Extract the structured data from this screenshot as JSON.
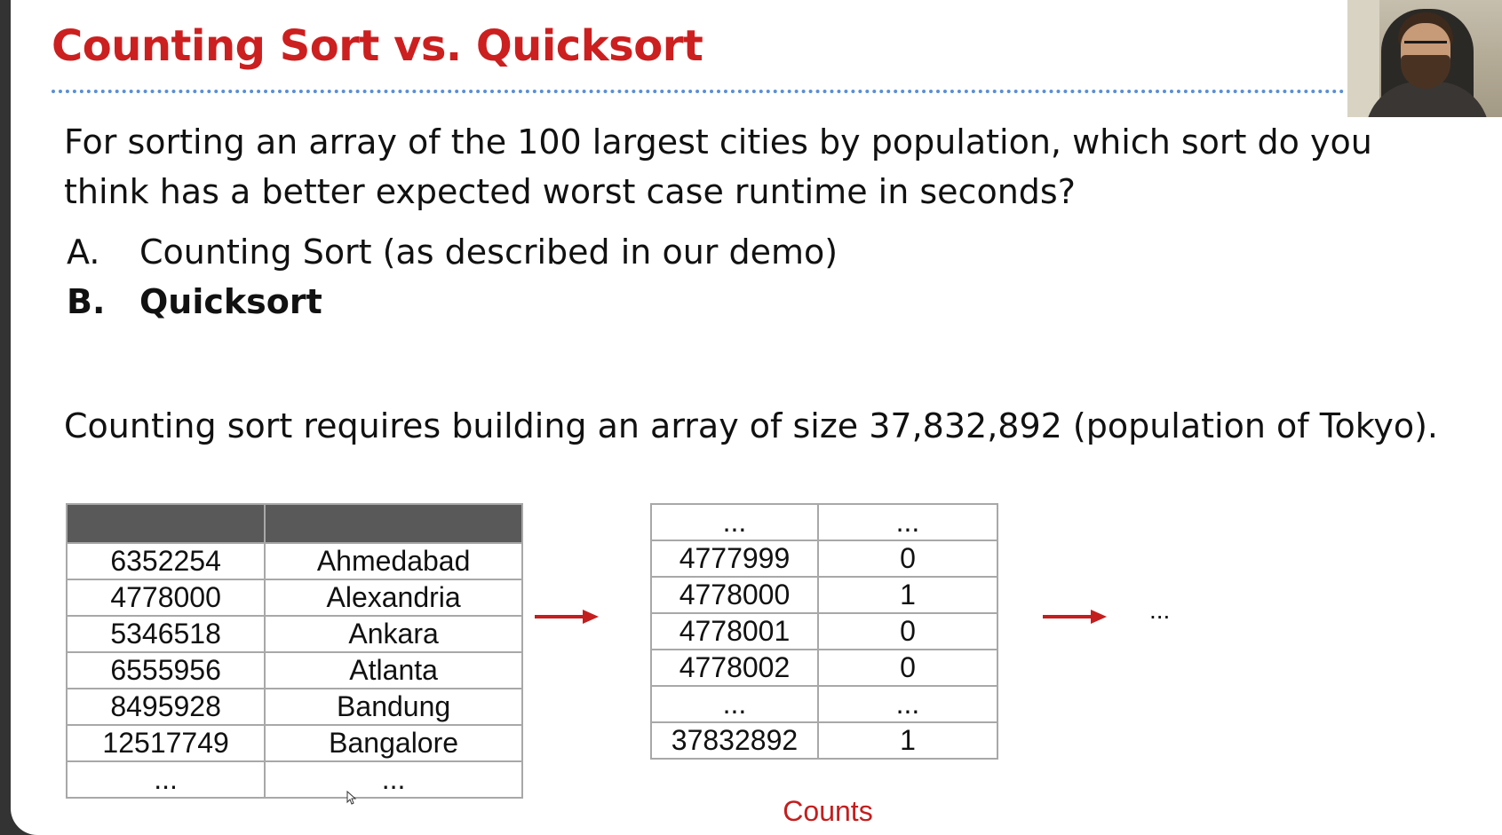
{
  "slide": {
    "title": "Counting Sort vs. Quicksort",
    "question": "For sorting an array of the 100 largest cities by population, which sort do you think has a better expected worst case runtime in seconds?",
    "options": [
      {
        "letter": "A.",
        "text": "Counting Sort (as described in our demo)",
        "selected": false
      },
      {
        "letter": "B.",
        "text": "Quicksort",
        "selected": true
      }
    ],
    "note": "Counting sort requires building an array of size 37,832,892 (population of Tokyo).",
    "cities_table": {
      "header": [
        "",
        ""
      ],
      "rows": [
        [
          "6352254",
          "Ahmedabad"
        ],
        [
          "4778000",
          "Alexandria"
        ],
        [
          "5346518",
          "Ankara"
        ],
        [
          "6555956",
          "Atlanta"
        ],
        [
          "8495928",
          "Bandung"
        ],
        [
          "12517749",
          "Bangalore"
        ],
        [
          "...",
          "..."
        ]
      ]
    },
    "counts_table": {
      "rows": [
        [
          "...",
          "..."
        ],
        [
          "4777999",
          "0"
        ],
        [
          "4778000",
          "1"
        ],
        [
          "4778001",
          "0"
        ],
        [
          "4778002",
          "0"
        ],
        [
          "...",
          "..."
        ],
        [
          "37832892",
          "1"
        ]
      ],
      "label": "Counts"
    },
    "trailing_ellipsis": "...",
    "colors": {
      "title": "#cc1f1f",
      "accent_red": "#c41e1e",
      "table_header": "#595959",
      "title_rule": "#5a8fd6"
    },
    "icons": {
      "arrow": "right-arrow-icon",
      "cursor": "mouse-pointer-icon"
    }
  }
}
